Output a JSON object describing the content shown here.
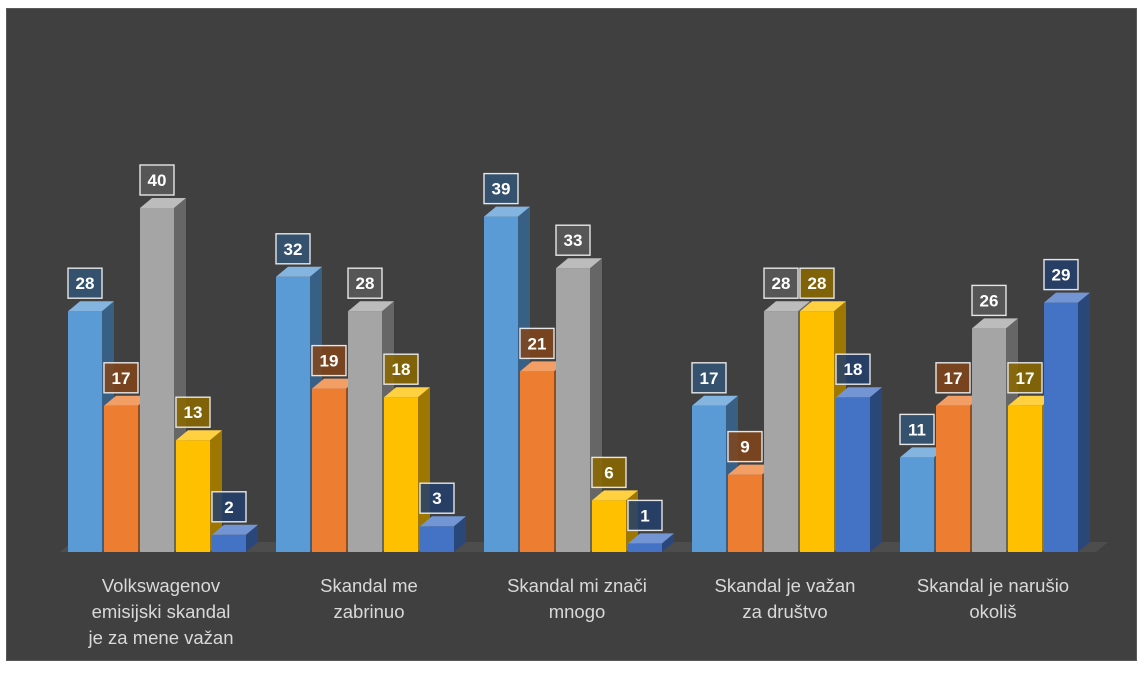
{
  "chart_data": {
    "type": "bar",
    "style": "3d-clustered-column",
    "categories": [
      [
        "Volkswagenov",
        "emisijski skandal",
        "je za mene važan"
      ],
      [
        "Skandal me",
        "zabrinuo"
      ],
      [
        "Skandal mi znači",
        "mnogo"
      ],
      [
        "Skandal je važan",
        "za društvo"
      ],
      [
        "Skandal je narušio",
        "okoliš"
      ]
    ],
    "series": [
      {
        "color": "#5b9bd5",
        "values": [
          28,
          32,
          39,
          17,
          11
        ]
      },
      {
        "color": "#ed7d31",
        "values": [
          17,
          19,
          21,
          9,
          17
        ]
      },
      {
        "color": "#a5a5a5",
        "values": [
          40,
          28,
          33,
          28,
          26
        ]
      },
      {
        "color": "#ffc000",
        "values": [
          13,
          18,
          6,
          28,
          17
        ]
      },
      {
        "color": "#4472c4",
        "values": [
          2,
          3,
          1,
          18,
          29
        ]
      }
    ],
    "ylim": [
      0,
      40
    ],
    "data_labels": true,
    "legend": "none",
    "gridlines": false,
    "background": "#404040"
  }
}
